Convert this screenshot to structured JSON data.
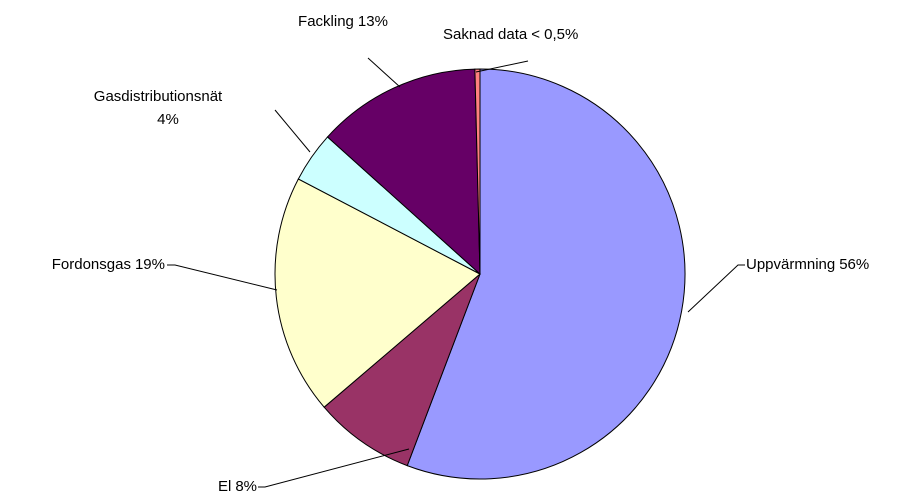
{
  "chart_data": {
    "type": "pie",
    "categories": [
      "Uppvärmning",
      "El",
      "Fordonsgas",
      "Gasdistributionsnät",
      "Fackling",
      "Saknad data"
    ],
    "values": [
      56,
      8,
      19,
      4,
      13,
      0.4
    ],
    "value_labels": [
      "56%",
      "8%",
      "19%",
      "4%",
      "13%",
      "< 0,5%"
    ],
    "colors": [
      "#9999ff",
      "#993366",
      "#ffffcc",
      "#ccffff",
      "#660066",
      "#ff8080"
    ]
  }
}
